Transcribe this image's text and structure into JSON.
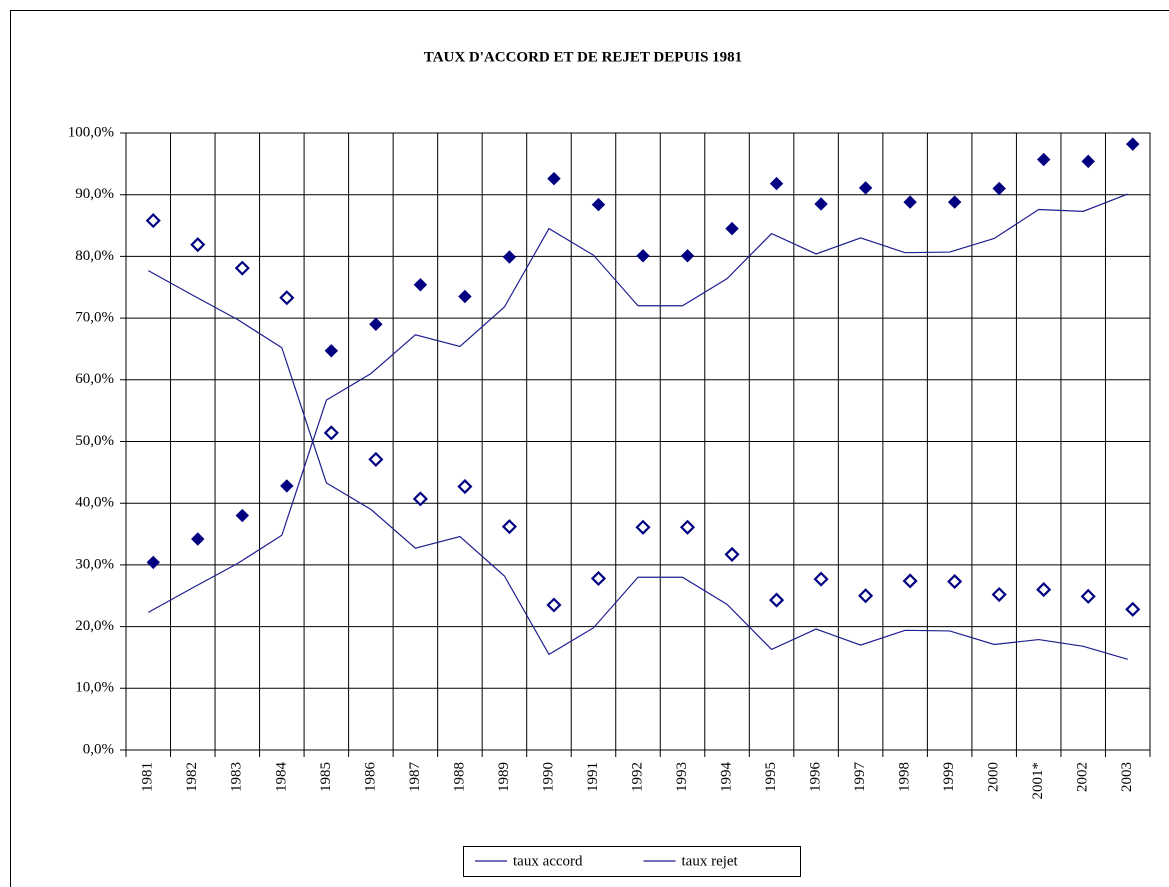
{
  "chart_data": {
    "type": "line",
    "title": "TAUX D'ACCORD ET DE REJET DEPUIS 1981",
    "categories": [
      "1981",
      "1982",
      "1983",
      "1984",
      "1985",
      "1986",
      "1987",
      "1988",
      "1989",
      "1990",
      "1991",
      "1992",
      "1993",
      "1994",
      "1995",
      "1996",
      "1997",
      "1998",
      "1999",
      "2000",
      "2001*",
      "2002",
      "2003"
    ],
    "series": [
      {
        "name": "taux accord",
        "color": "#1f1f8f",
        "style": "line",
        "values": [
          22.3,
          26.3,
          30.2,
          34.8,
          56.7,
          61.0,
          67.3,
          65.4,
          71.8,
          84.5,
          80.2,
          72.0,
          72.0,
          76.4,
          83.7,
          80.4,
          83.0,
          80.6,
          80.7,
          82.9,
          87.6,
          87.3,
          90.1
        ]
      },
      {
        "name": "taux rejet",
        "color": "#1f1f8f",
        "style": "line",
        "values": [
          77.7,
          73.7,
          69.8,
          65.2,
          43.3,
          39.0,
          32.7,
          34.6,
          28.2,
          15.5,
          19.8,
          28.0,
          28.0,
          23.6,
          16.3,
          19.6,
          17.0,
          19.4,
          19.3,
          17.1,
          17.9,
          16.8,
          14.7
        ]
      },
      {
        "color": "#000080",
        "style": "filled-diamond",
        "values": [
          30.4,
          34.2,
          38.0,
          42.8,
          64.7,
          69.0,
          75.4,
          73.5,
          79.9,
          92.6,
          88.4,
          80.1,
          80.1,
          84.5,
          91.8,
          88.5,
          91.1,
          88.8,
          88.8,
          91.0,
          95.7,
          95.4,
          98.2
        ]
      },
      {
        "color": "#000080",
        "style": "open-diamond",
        "values": [
          85.8,
          81.9,
          78.1,
          73.3,
          51.4,
          47.1,
          40.7,
          42.7,
          36.2,
          23.5,
          27.8,
          36.1,
          36.1,
          31.7,
          24.3,
          27.7,
          25.0,
          27.4,
          27.3,
          25.2,
          26.0,
          24.9,
          22.8
        ]
      }
    ],
    "ylim": [
      0,
      100
    ],
    "yticks": [
      {
        "value": 0,
        "label": "0,0%"
      },
      {
        "value": 10,
        "label": "10,0%"
      },
      {
        "value": 20,
        "label": "20,0%"
      },
      {
        "value": 30,
        "label": "30,0%"
      },
      {
        "value": 40,
        "label": "40,0%"
      },
      {
        "value": 50,
        "label": "50,0%"
      },
      {
        "value": 60,
        "label": "60,0%"
      },
      {
        "value": 70,
        "label": "70,0%"
      },
      {
        "value": 80,
        "label": "80,0%"
      },
      {
        "value": 90,
        "label": "90,0%"
      },
      {
        "value": 100,
        "label": "100,0%"
      }
    ],
    "grid": true,
    "legend": "bottom"
  }
}
